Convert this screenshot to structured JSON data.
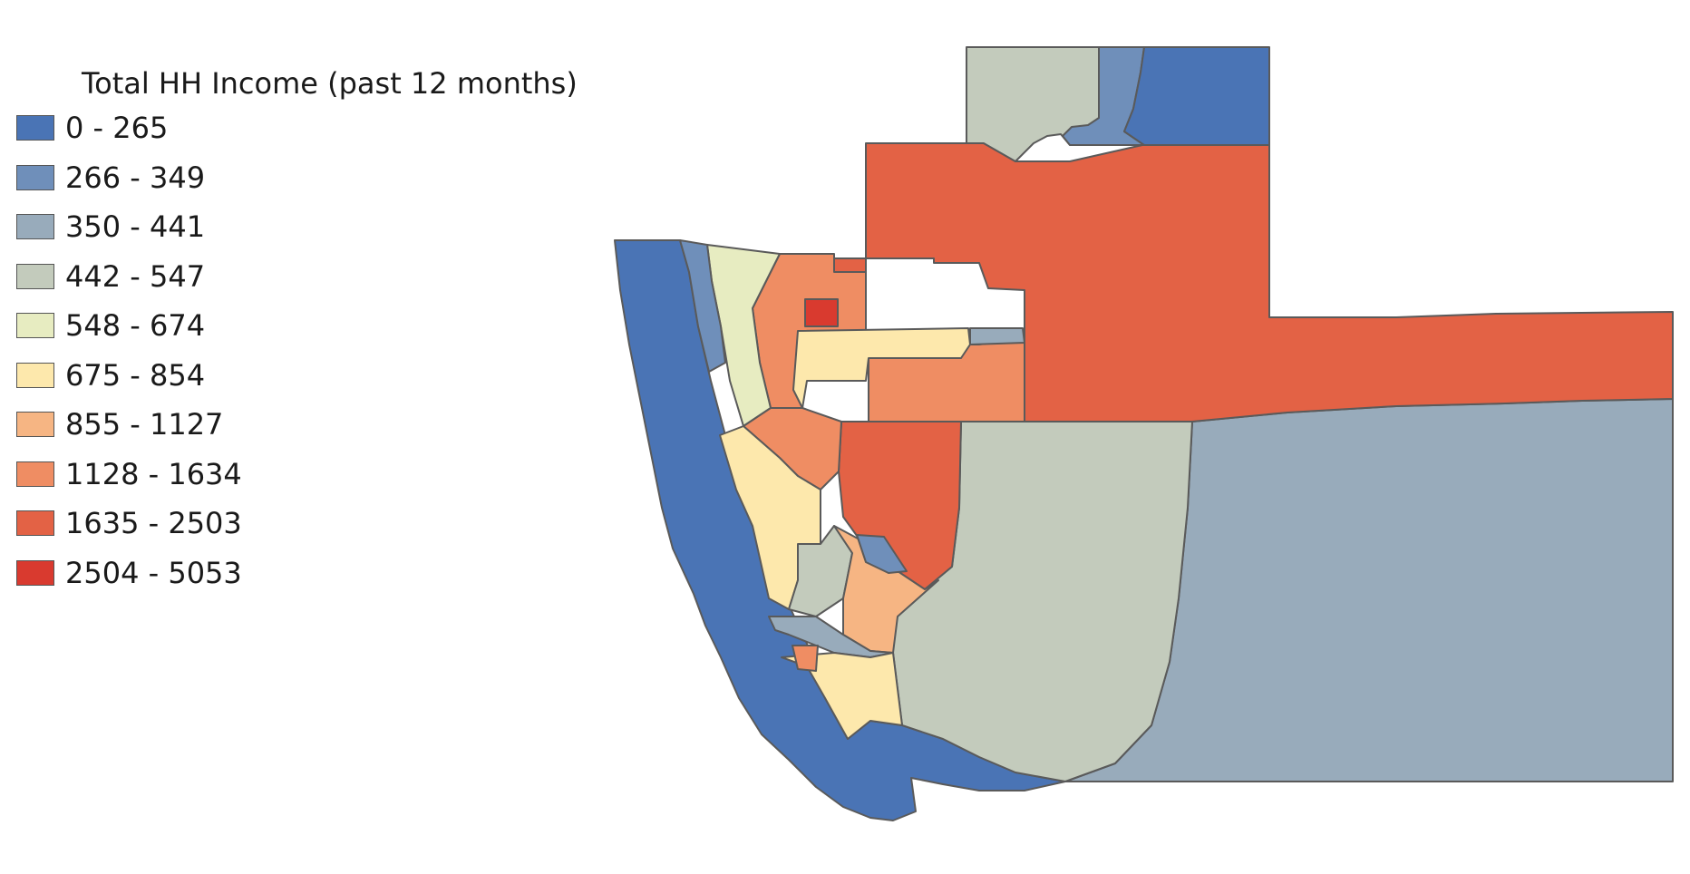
{
  "legend": {
    "title": "Total HH Income (past 12 months)",
    "classes": [
      {
        "label": "0 - 265",
        "color": "#4a74b5"
      },
      {
        "label": "266 - 349",
        "color": "#6f8fba"
      },
      {
        "label": "350 - 441",
        "color": "#98abbb"
      },
      {
        "label": "442 - 547",
        "color": "#c3cbbc"
      },
      {
        "label": "548 - 674",
        "color": "#e7ecc1"
      },
      {
        "label": "675 - 854",
        "color": "#fde8ac"
      },
      {
        "label": "855 - 1127",
        "color": "#f6b583"
      },
      {
        "label": "1128 - 1634",
        "color": "#ef8d63"
      },
      {
        "label": "1635 - 2503",
        "color": "#e36245"
      },
      {
        "label": "2504 - 5053",
        "color": "#d93a2f"
      }
    ]
  }
}
